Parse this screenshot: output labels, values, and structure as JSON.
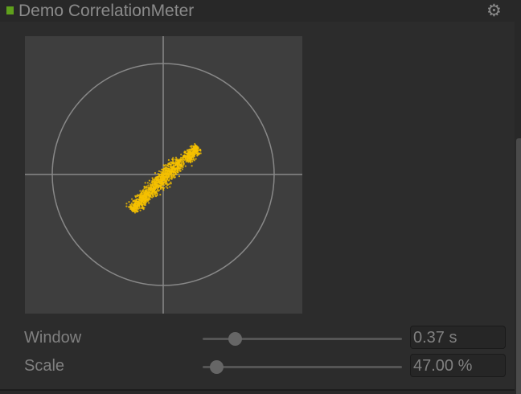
{
  "header": {
    "title": "Demo CorrelationMeter",
    "status_color": "#5fa01c",
    "settings_icon": "gear-icon"
  },
  "scope": {
    "point_color": "#f5c000",
    "axis_color": "#888888",
    "correlation": "positive"
  },
  "controls": [
    {
      "label": "Window",
      "value": "0.37 s",
      "slider_fraction": 0.16
    },
    {
      "label": "Scale",
      "value": "47.00 %",
      "slider_fraction": 0.07
    }
  ]
}
